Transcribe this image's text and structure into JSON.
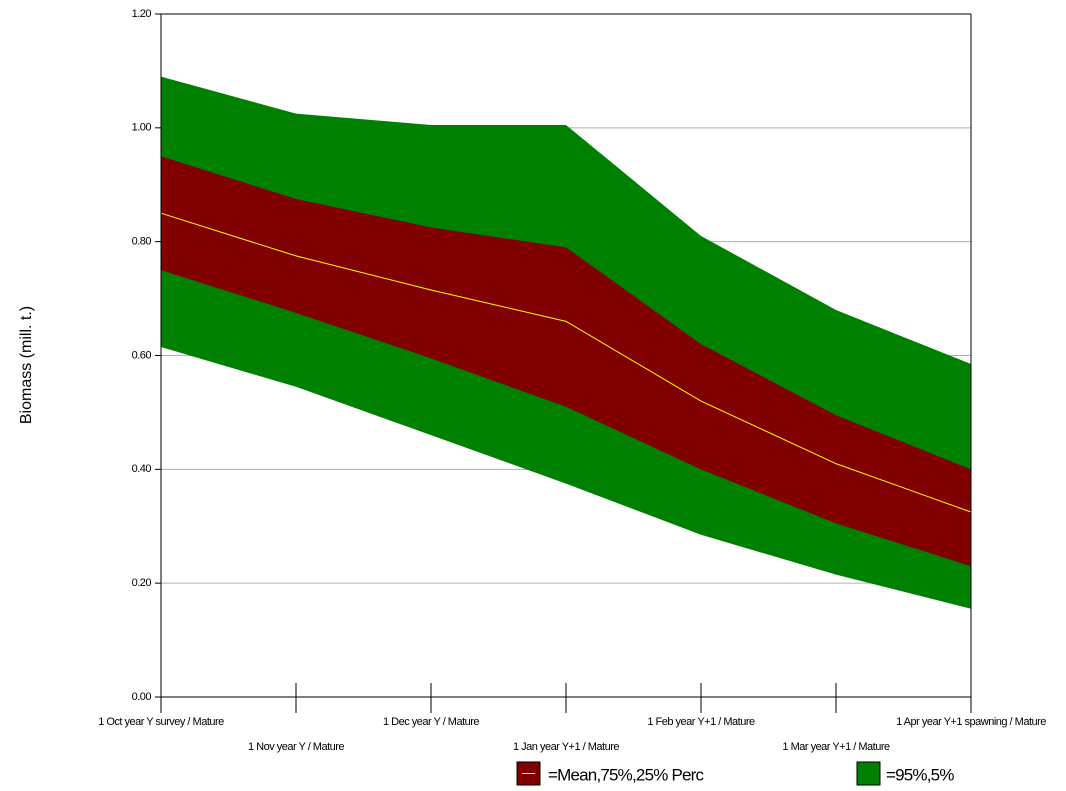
{
  "chart_data": {
    "type": "band",
    "y_label": "Biomass (mill. t.)",
    "categories": [
      "1 Oct year Y survey / Mature",
      "1 Nov year Y / Mature",
      "1 Dec year Y / Mature",
      "1 Jan year Y+1 / Mature",
      "1 Feb year Y+1 / Mature",
      "1 Mar year Y+1 / Mature",
      "1 Apr year Y+1 spawning / Mature"
    ],
    "bands": [
      {
        "name": "=95%,5%",
        "color": "#008000",
        "upper": [
          1.09,
          1.025,
          1.005,
          1.005,
          0.81,
          0.68,
          0.585
        ],
        "lower": [
          0.615,
          0.545,
          0.46,
          0.375,
          0.285,
          0.215,
          0.155
        ]
      },
      {
        "name": "=Mean,75%,25% Perc",
        "color": "#800000",
        "upper": [
          0.95,
          0.875,
          0.825,
          0.79,
          0.62,
          0.495,
          0.4
        ],
        "lower": [
          0.75,
          0.675,
          0.595,
          0.51,
          0.4,
          0.305,
          0.23
        ],
        "mean": [
          0.85,
          0.775,
          0.715,
          0.66,
          0.52,
          0.41,
          0.325
        ],
        "mean_color": "#ffff00"
      }
    ],
    "ylim": [
      0,
      1.2
    ],
    "yticks": [
      {
        "value": 0,
        "label": "0.00"
      },
      {
        "value": 0.2,
        "label": "0.20"
      },
      {
        "value": 0.4,
        "label": "0.40"
      },
      {
        "value": 0.6,
        "label": "0.60"
      },
      {
        "value": 0.8,
        "label": "0.80"
      },
      {
        "value": 1.0,
        "label": "1.00"
      },
      {
        "value": 1.2,
        "label": "1.20"
      }
    ],
    "grid": true
  }
}
